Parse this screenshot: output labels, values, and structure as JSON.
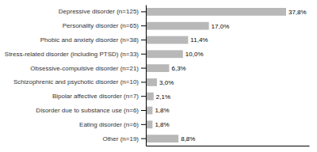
{
  "chart_data": {
    "type": "bar",
    "orientation": "horizontal",
    "categories": [
      "Other (n=19)",
      "Eating disorder (n=6)",
      "Disorder due to substance use (n=6)",
      "Bipolar affective disorder (n=7)",
      "Schizophrenic and psychotic disorder (n=10)",
      "Obsessive-compulsive disorder (n=21)",
      "Stress-related disorder (including PTSD) (n=33)",
      "Phobic and anxiety disorder (n=38)",
      "Personality disorder (n=65)",
      "Depressive disorder (n=125)"
    ],
    "values": [
      8.8,
      1.8,
      1.8,
      2.1,
      3.0,
      6.3,
      10.0,
      11.4,
      17.0,
      37.8
    ],
    "value_labels": [
      "8,8%",
      "1,8%",
      "1,8%",
      "2,1%",
      "3,0%",
      "6,3%",
      "10,0%",
      "11,4%",
      "17,0%",
      "37,8%"
    ],
    "data_labels": true,
    "color": "#b8b8b8",
    "xlim": [
      0,
      44
    ],
    "tick_labels": "y"
  }
}
